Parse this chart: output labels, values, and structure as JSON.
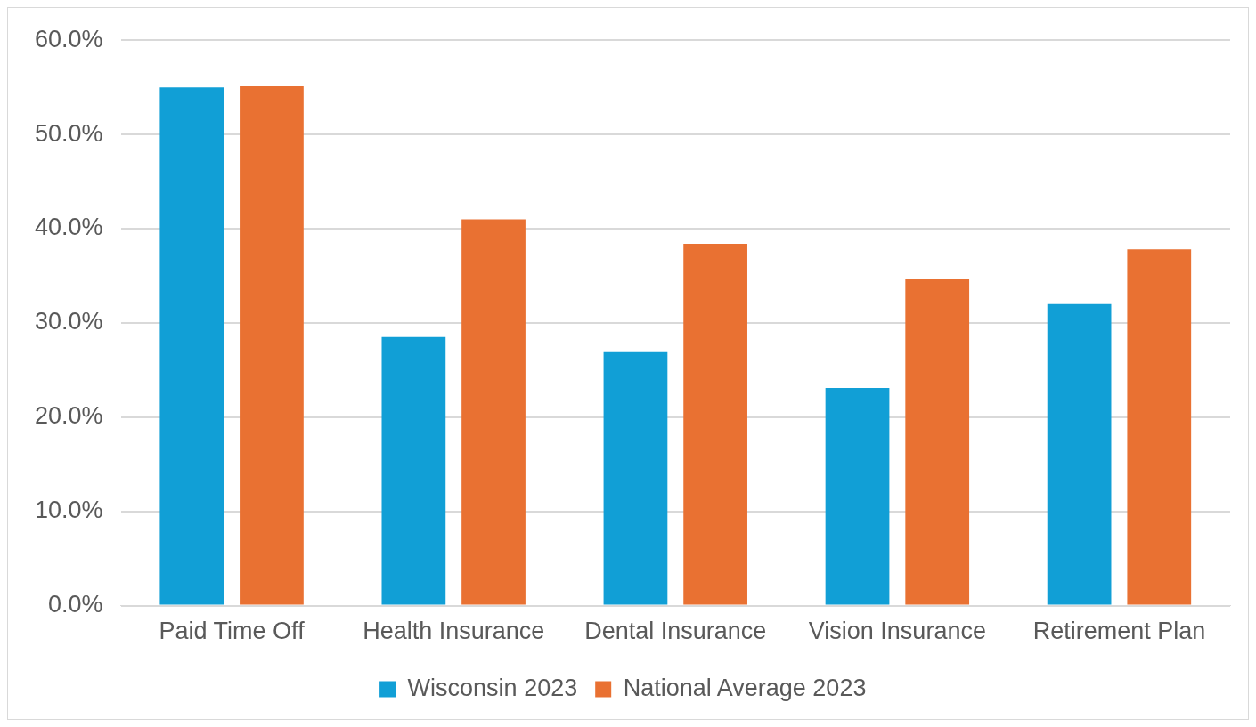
{
  "chart_data": {
    "type": "bar",
    "categories": [
      "Paid Time Off",
      "Health Insurance",
      "Dental Insurance",
      "Vision Insurance",
      "Retirement Plan"
    ],
    "series": [
      {
        "name": "Wisconsin 2023",
        "color": "#119fd6",
        "values": [
          55.0,
          28.5,
          26.9,
          23.1,
          32.0
        ]
      },
      {
        "name": "National Average 2023",
        "color": "#e97132",
        "values": [
          55.1,
          41.0,
          38.4,
          34.7,
          37.8
        ]
      }
    ],
    "ylim": [
      0,
      60
    ],
    "yticks": [
      {
        "value": 0,
        "label": "0.0%"
      },
      {
        "value": 10,
        "label": "10.0%"
      },
      {
        "value": 20,
        "label": "20.0%"
      },
      {
        "value": 30,
        "label": "30.0%"
      },
      {
        "value": 40,
        "label": "40.0%"
      },
      {
        "value": 50,
        "label": "50.0%"
      },
      {
        "value": 60,
        "label": "60.0%"
      }
    ],
    "grid": "y",
    "legend": "bottom"
  }
}
